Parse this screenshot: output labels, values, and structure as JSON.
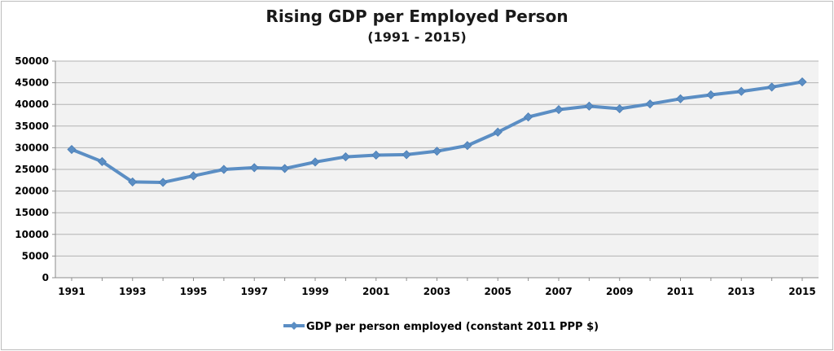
{
  "chart_data": {
    "type": "line",
    "title": "Rising GDP per Employed Person",
    "subtitle": "(1991 - 2015)",
    "xlabel": "",
    "ylabel": "",
    "x": [
      1991,
      1992,
      1993,
      1994,
      1995,
      1996,
      1997,
      1998,
      1999,
      2000,
      2001,
      2002,
      2003,
      2004,
      2005,
      2006,
      2007,
      2008,
      2009,
      2010,
      2011,
      2012,
      2013,
      2014,
      2015
    ],
    "x_tick_labels": [
      "1991",
      "1993",
      "1995",
      "1997",
      "1999",
      "2001",
      "2003",
      "2005",
      "2007",
      "2009",
      "2011",
      "2013",
      "2015"
    ],
    "y_tick_labels": [
      "0",
      "5000",
      "10000",
      "15000",
      "20000",
      "25000",
      "30000",
      "35000",
      "40000",
      "45000",
      "50000"
    ],
    "ylim": [
      0,
      50000
    ],
    "grid": true,
    "legend_position": "bottom",
    "series": [
      {
        "name": "GDP per person employed (constant 2011 PPP $)",
        "color": "#5b8ec4",
        "values": [
          29600,
          26800,
          22100,
          22000,
          23500,
          25000,
          25400,
          25200,
          26700,
          27900,
          28300,
          28400,
          29200,
          30500,
          33600,
          37100,
          38800,
          39600,
          39000,
          40100,
          41300,
          42200,
          43000,
          44000,
          45200
        ]
      }
    ]
  }
}
